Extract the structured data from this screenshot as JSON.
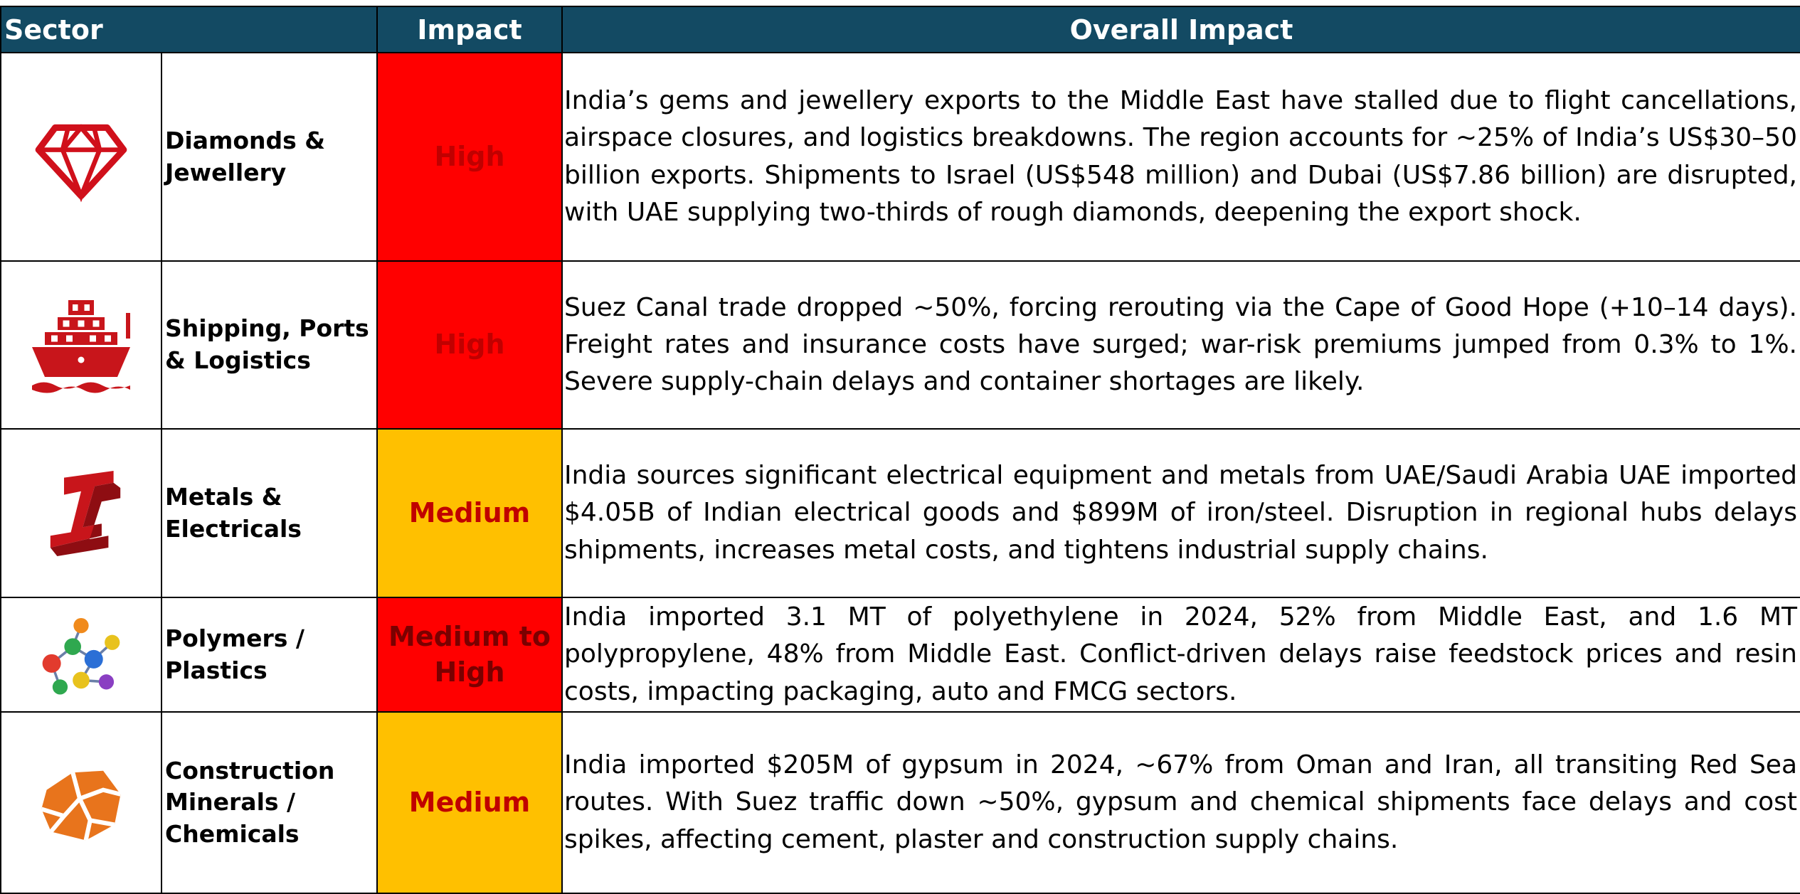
{
  "header": [
    "Sector",
    "Impact",
    "Overall Impact"
  ],
  "rows": [
    {
      "sector": "Diamonds & Jewellery",
      "impact": "High",
      "color": "#ff0000",
      "text_color": "#c00000",
      "description": "India’s gems and jewellery exports to the Middle East have stalled due to flight cancellations, airspace closures, and logistics breakdowns. The region accounts for ~25% of India’s US$30–50 billion exports. Shipments to Israel (US$548 million) and Dubai (US$7.86 billion) are disrupted, with UAE supplying two-thirds of rough diamonds, deepening the export shock."
    },
    {
      "sector": "Shipping, Ports & Logistics",
      "impact": "High",
      "color": "#ff0000",
      "text_color": "#c00000",
      "description": "Suez Canal trade dropped ~50%, forcing rerouting via the Cape of Good Hope (+10–14 days). Freight rates and insurance costs have surged; war-risk premiums jumped from 0.3% to 1%. Severe supply-chain delays and container shortages are likely."
    },
    {
      "sector": "Metals & Electricals",
      "impact": "Medium",
      "color": "#ffc000",
      "text_color": "#c00000",
      "description": "India sources significant electrical equipment and metals from UAE/Saudi Arabia UAE imported $4.05B of Indian electrical goods and $899M of iron/steel. Disruption in regional hubs delays shipments, increases metal costs, and tightens industrial supply chains."
    },
    {
      "sector": "Polymers / Plastics",
      "impact": "Medium to High",
      "color": "#ff0000",
      "text_color": "#7a0000",
      "description": "India imported 3.1 MT of polyethylene in 2024, 52% from Middle East, and 1.6 MT polypropylene, 48% from Middle East. Conflict-driven delays raise feedstock prices and resin costs, impacting packaging, auto and FMCG sectors."
    },
    {
      "sector": "Construction Minerals / Chemicals",
      "impact": "Medium",
      "color": "#ffc000",
      "text_color": "#c00000",
      "description": "India imported $205M of gypsum in 2024, ~67% from Oman and Iran, all transiting Red Sea routes. With Suez traffic down ~50%, gypsum and chemical shipments face delays and cost spikes, affecting cement, plaster and construction supply chains."
    }
  ]
}
